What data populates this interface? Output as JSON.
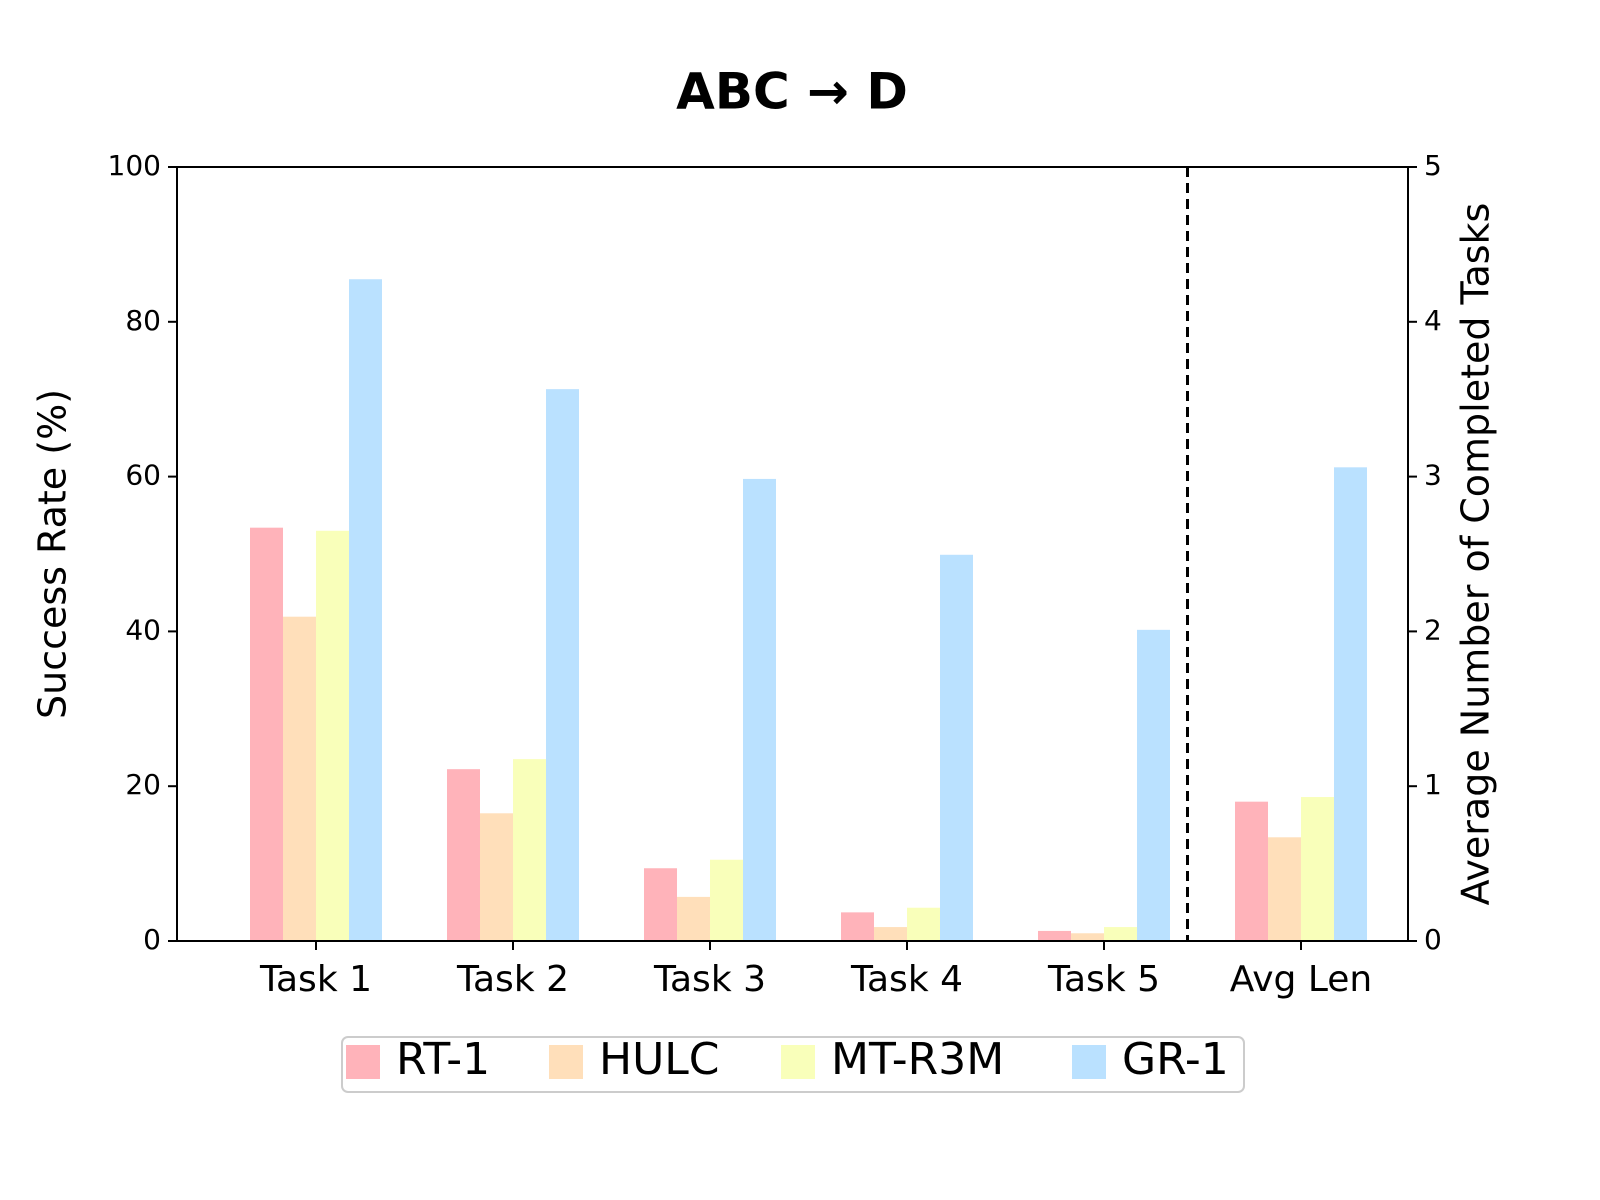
{
  "chart_data": {
    "type": "bar",
    "title": "ABC → D",
    "ylabel": "Success Rate (%)",
    "y2label": "Average Number of Completed Tasks",
    "categories": [
      "Task 1",
      "Task 2",
      "Task 3",
      "Task 4",
      "Task 5"
    ],
    "y2_category": "Avg Len",
    "series": [
      {
        "name": "RT-1",
        "color": "#ffb3ba",
        "values": [
          53.4,
          22.2,
          9.4,
          3.7,
          1.3
        ],
        "y2_value": 0.9
      },
      {
        "name": "HULC",
        "color": "#ffdfba",
        "values": [
          41.9,
          16.5,
          5.7,
          1.8,
          1.0
        ],
        "y2_value": 0.67
      },
      {
        "name": "MT-R3M",
        "color": "#f9ffba",
        "values": [
          53.0,
          23.5,
          10.5,
          4.3,
          1.8
        ],
        "y2_value": 0.93
      },
      {
        "name": "GR-1",
        "color": "#bae1ff",
        "values": [
          85.5,
          71.3,
          59.7,
          49.9,
          40.2
        ],
        "y2_value": 3.06
      }
    ],
    "ylim": [
      0,
      100
    ],
    "yticks": [
      0,
      20,
      40,
      60,
      80,
      100
    ],
    "y2lim": [
      0,
      5
    ],
    "y2ticks": [
      0,
      1,
      2,
      3,
      4,
      5
    ],
    "legend": "bottom"
  }
}
